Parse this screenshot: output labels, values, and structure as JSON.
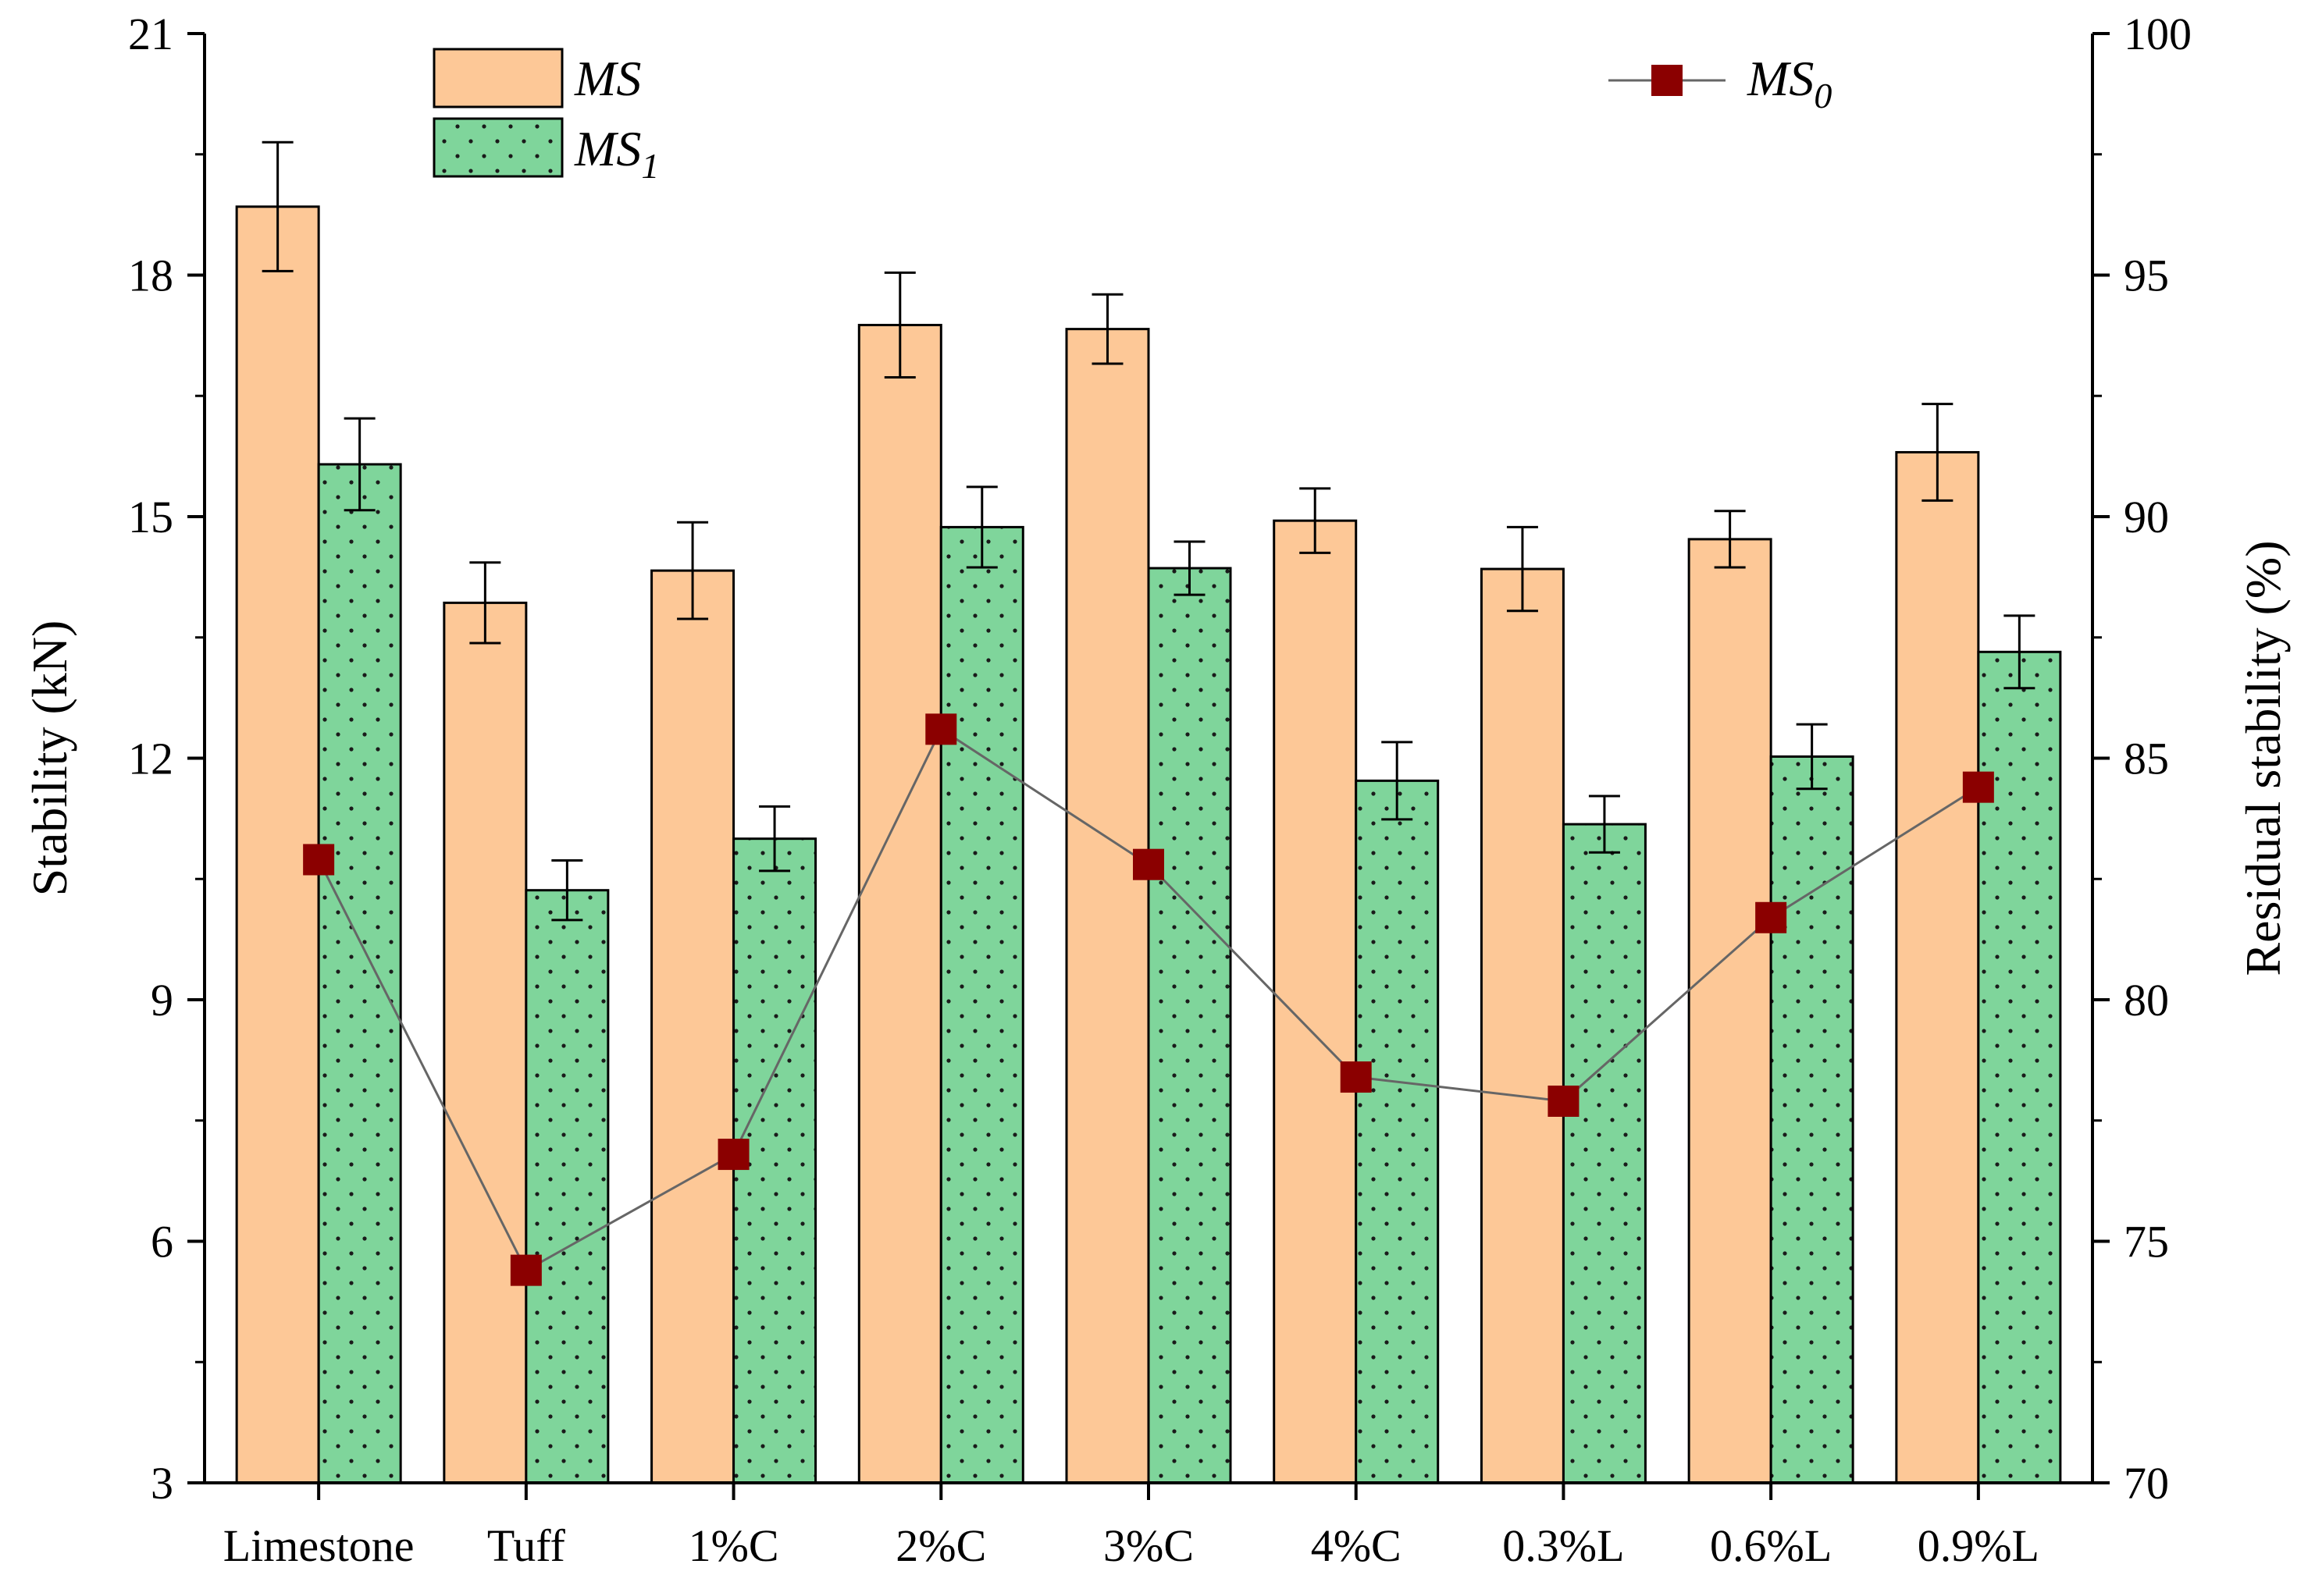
{
  "chart_data": {
    "type": "bar",
    "categories": [
      "Limestone",
      "Tuff",
      "1%C",
      "2%C",
      "3%C",
      "4%C",
      "0.3%L",
      "0.6%L",
      "0.9%L"
    ],
    "series": [
      {
        "name": "MS",
        "axis": "left",
        "kind": "bar",
        "color": "#FDC897",
        "values": [
          18.85,
          13.93,
          14.33,
          17.38,
          17.33,
          14.95,
          14.35,
          14.72,
          15.8
        ],
        "errors": [
          0.8,
          0.5,
          0.6,
          0.65,
          0.43,
          0.4,
          0.52,
          0.35,
          0.6
        ]
      },
      {
        "name": "MS1",
        "axis": "left",
        "kind": "bar",
        "color": "#7FD59B",
        "values": [
          15.65,
          10.36,
          11.0,
          14.87,
          14.36,
          11.72,
          11.18,
          12.02,
          13.32
        ],
        "errors": [
          0.57,
          0.37,
          0.4,
          0.5,
          0.33,
          0.48,
          0.35,
          0.4,
          0.45
        ]
      },
      {
        "name": "MS0",
        "axis": "right",
        "kind": "line",
        "color": "#8B0000",
        "values": [
          82.9,
          74.4,
          76.8,
          85.6,
          82.8,
          78.4,
          77.9,
          81.7,
          84.4
        ]
      }
    ],
    "legend": [
      {
        "key": "MS",
        "base": "MS",
        "sub": ""
      },
      {
        "key": "MS1",
        "base": "MS",
        "sub": "1"
      },
      {
        "key": "MS0",
        "base": "MS",
        "sub": "0"
      }
    ],
    "ylabel": "Stability (kN)",
    "y2label": "Residual stability (%)",
    "ylim": [
      3,
      21
    ],
    "yticks": [
      "3",
      "6",
      "9",
      "12",
      "15",
      "18",
      "21"
    ],
    "y2lim": [
      70,
      100
    ],
    "y2ticks": [
      "70",
      "75",
      "80",
      "85",
      "90",
      "95",
      "100"
    ],
    "grid": false
  }
}
